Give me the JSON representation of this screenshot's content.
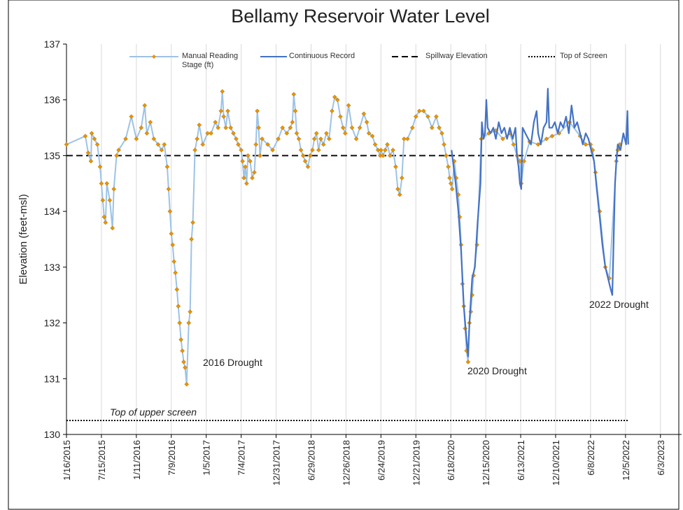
{
  "chart_data": {
    "type": "line",
    "title": "Bellamy Reservoir Water Level",
    "y_label": "Elevation (feet-msl)",
    "xlim": [
      "1/16/2015",
      "9/20/2023"
    ],
    "xticks": [
      "1/16/2015",
      "7/15/2015",
      "1/11/2016",
      "7/9/2016",
      "1/5/2017",
      "7/4/2017",
      "12/31/2017",
      "6/29/2018",
      "12/26/2018",
      "6/24/2019",
      "12/21/2019",
      "6/18/2020",
      "12/15/2020",
      "6/13/2021",
      "12/10/2021",
      "6/8/2022",
      "12/5/2022",
      "6/3/2023"
    ],
    "ylim": [
      130,
      137
    ],
    "yticks": [
      130,
      131,
      132,
      133,
      134,
      135,
      136,
      137
    ],
    "grid": "x",
    "legend": "top",
    "annotations": [
      "2016 Drought",
      "2020 Drought",
      "2022 Drought",
      "Top of upper screen"
    ],
    "series": [
      {
        "name": "Manual Reading Stage (ft)",
        "color": "#9dc3e6",
        "marker_color": "#e69500",
        "markers": true,
        "line_style": "solid",
        "x": [
          "1/16/2015",
          "4/23/2015",
          "5/8/2015",
          "5/22/2015",
          "5/26/2015",
          "6/9/2015",
          "6/24/2015",
          "7/8/2015",
          "7/15/2015",
          "7/22/2015",
          "7/29/2015",
          "8/5/2015",
          "8/12/2015",
          "8/27/2015",
          "9/10/2015",
          "9/17/2015",
          "10/1/2015",
          "10/12/2015",
          "11/17/2015",
          "12/16/2015",
          "1/11/2016",
          "2/5/2016",
          "2/23/2016",
          "3/5/2016",
          "3/23/2016",
          "4/10/2016",
          "5/2/2016",
          "5/20/2016",
          "6/3/2016",
          "6/18/2016",
          "6/25/2016",
          "7/2/2016",
          "7/9/2016",
          "7/16/2016",
          "7/23/2016",
          "7/30/2016",
          "8/7/2016",
          "8/14/2016",
          "8/21/2016",
          "8/28/2016",
          "9/4/2016",
          "9/11/2016",
          "9/18/2016",
          "9/26/2016",
          "10/7/2016",
          "10/14/2016",
          "10/21/2016",
          "10/28/2016",
          "11/8/2016",
          "11/19/2016",
          "11/30/2016",
          "12/18/2016",
          "1/12/2017",
          "1/30/2017",
          "2/21/2017",
          "3/7/2017",
          "3/22/2017",
          "3/29/2017",
          "4/5/2017",
          "4/16/2017",
          "4/26/2017",
          "5/11/2017",
          "5/25/2017",
          "6/8/2017",
          "6/19/2017",
          "7/4/2017",
          "7/11/2017",
          "7/18/2017",
          "7/25/2017",
          "8/1/2017",
          "8/8/2017",
          "8/19/2017",
          "8/30/2017",
          "9/10/2017",
          "9/18/2017",
          "9/25/2017",
          "10/2/2017",
          "10/9/2017",
          "10/20/2017",
          "11/18/2017",
          "12/13/2017",
          "1/11/2018",
          "2/2/2018",
          "2/24/2018",
          "3/14/2018",
          "3/25/2018",
          "4/1/2018",
          "4/9/2018",
          "4/16/2018",
          "4/27/2018",
          "5/8/2018",
          "5/19/2018",
          "5/30/2018",
          "6/13/2018",
          "6/24/2018",
          "7/6/2018",
          "7/16/2018",
          "7/27/2018",
          "8/7/2018",
          "8/18/2018",
          "9/1/2018",
          "9/16/2018",
          "9/30/2018",
          "10/15/2018",
          "10/29/2018",
          "11/12/2018",
          "11/27/2018",
          "12/11/2018",
          "12/22/2018",
          "1/8/2019",
          "1/26/2019",
          "2/17/2019",
          "3/7/2019",
          "3/28/2019",
          "4/12/2019",
          "4/23/2019",
          "5/11/2019",
          "5/25/2019",
          "6/9/2019",
          "6/20/2019",
          "6/24/2019",
          "7/5/2019",
          "7/16/2019",
          "7/27/2019",
          "8/10/2019",
          "8/25/2019",
          "9/8/2019",
          "9/19/2019",
          "9/29/2019",
          "10/10/2019",
          "10/21/2019",
          "11/8/2019",
          "12/3/2019",
          "12/21/2019",
          "1/8/2020",
          "1/30/2020",
          "2/21/2020",
          "3/13/2020",
          "4/4/2020",
          "4/19/2020",
          "5/3/2020",
          "5/14/2020",
          "5/25/2020",
          "6/5/2020",
          "6/12/2020",
          "6/18/2020",
          "6/25/2020",
          "7/6/2020",
          "7/16/2020",
          "7/27/2020",
          "8/3/2020",
          "8/10/2020",
          "8/17/2020",
          "8/24/2020",
          "8/31/2020",
          "9/7/2020",
          "9/15/2020",
          "9/22/2020",
          "9/29/2020",
          "10/6/2020",
          "10/13/2020",
          "10/31/2020",
          "11/22/2020",
          "12/31/2020",
          "2/5/2021",
          "3/13/2021",
          "4/18/2021",
          "5/7/2021",
          "5/25/2021",
          "6/9/2021",
          "6/16/2021",
          "6/30/2021",
          "7/29/2021",
          "9/11/2021",
          "10/24/2021",
          "11/22/2021",
          "12/28/2021",
          "2/20/2022",
          "4/15/2022",
          "5/14/2022",
          "6/8/2022",
          "6/19/2022",
          "7/3/2022",
          "7/25/2022",
          "8/23/2022",
          "9/13/2022",
          "10/19/2022",
          "10/26/2022",
          "11/5/2022"
        ],
        "values": [
          135.2,
          135.35,
          135.05,
          134.9,
          135.4,
          135.3,
          135.2,
          134.8,
          134.5,
          134.2,
          133.9,
          133.8,
          134.5,
          134.2,
          133.7,
          134.4,
          135.0,
          135.1,
          135.3,
          135.7,
          135.3,
          135.5,
          135.9,
          135.4,
          135.6,
          135.3,
          135.2,
          135.1,
          135.2,
          134.8,
          134.4,
          134.0,
          133.6,
          133.4,
          133.1,
          132.9,
          132.6,
          132.3,
          132.0,
          131.7,
          131.5,
          131.3,
          131.2,
          130.9,
          132.0,
          132.2,
          133.5,
          133.8,
          135.1,
          135.3,
          135.55,
          135.2,
          135.4,
          135.4,
          135.6,
          135.5,
          135.8,
          136.15,
          135.7,
          135.5,
          135.8,
          135.5,
          135.4,
          135.3,
          135.2,
          135.1,
          134.9,
          134.6,
          134.8,
          134.5,
          135.0,
          134.9,
          134.6,
          134.7,
          135.2,
          135.8,
          135.5,
          135.0,
          135.3,
          135.2,
          135.1,
          135.3,
          135.5,
          135.4,
          135.5,
          135.6,
          136.1,
          135.8,
          135.4,
          135.3,
          135.1,
          135.0,
          134.9,
          134.8,
          135.0,
          135.1,
          135.3,
          135.4,
          135.1,
          135.3,
          135.2,
          135.4,
          135.3,
          135.8,
          136.05,
          136.0,
          135.7,
          135.5,
          135.4,
          135.9,
          135.5,
          135.3,
          135.5,
          135.75,
          135.6,
          135.4,
          135.35,
          135.2,
          135.1,
          135.0,
          135.1,
          135.0,
          135.1,
          135.2,
          135.0,
          135.1,
          134.8,
          134.4,
          134.3,
          134.6,
          135.3,
          135.3,
          135.5,
          135.7,
          135.8,
          135.8,
          135.7,
          135.5,
          135.7,
          135.5,
          135.4,
          135.2,
          135.0,
          134.8,
          134.6,
          134.5,
          134.4,
          134.9,
          134.6,
          134.3,
          133.9,
          133.4,
          132.7,
          132.3,
          131.9,
          131.5,
          131.3,
          132.0,
          132.2,
          132.5,
          132.85,
          133.4,
          135.3,
          135.4,
          135.45,
          135.3,
          135.4,
          135.2,
          135.0,
          134.9,
          134.5,
          134.9,
          135.25,
          135.2,
          135.3,
          135.35,
          135.4,
          135.6,
          135.35,
          135.2,
          135.2,
          135.1,
          134.7,
          134.0,
          133.0,
          132.8,
          134.9,
          135.1,
          135.2
        ]
      },
      {
        "name": "Continuous Record",
        "color": "#4472c4",
        "markers": false,
        "line_style": "solid",
        "x": [
          "6/22/2020",
          "6/29/2020",
          "7/13/2020",
          "7/27/2020",
          "8/10/2020",
          "8/24/2020",
          "9/7/2020",
          "9/15/2020",
          "9/22/2020",
          "10/6/2020",
          "10/20/2020",
          "11/3/2020",
          "11/18/2020",
          "11/25/2020",
          "12/4/2020",
          "12/11/2020",
          "12/18/2020",
          "12/25/2020",
          "1/9/2021",
          "1/23/2021",
          "2/5/2021",
          "2/20/2021",
          "3/6/2021",
          "3/21/2021",
          "4/4/2021",
          "4/18/2021",
          "5/3/2021",
          "5/17/2021",
          "5/25/2021",
          "6/2/2021",
          "6/9/2021",
          "6/16/2021",
          "6/23/2021",
          "7/7/2021",
          "7/22/2021",
          "8/5/2021",
          "8/20/2021",
          "9/3/2021",
          "9/11/2021",
          "9/25/2021",
          "10/9/2021",
          "10/24/2021",
          "10/31/2021",
          "11/7/2021",
          "11/22/2021",
          "12/6/2021",
          "12/21/2021",
          "1/4/2022",
          "1/18/2022",
          "2/2/2022",
          "2/16/2022",
          "3/2/2022",
          "3/17/2022",
          "3/31/2022",
          "4/15/2022",
          "4/29/2022",
          "5/14/2022",
          "5/28/2022",
          "6/11/2022",
          "6/26/2022",
          "7/10/2022",
          "7/25/2022",
          "8/8/2022",
          "8/23/2022",
          "9/6/2022",
          "9/20/2022",
          "9/28/2022",
          "10/5/2022",
          "10/12/2022",
          "10/19/2022",
          "10/26/2022",
          "11/9/2022",
          "11/24/2022",
          "12/8/2022",
          "12/15/2022",
          "12/19/2022"
        ],
        "values": [
          135.1,
          134.9,
          134.5,
          134.0,
          133.3,
          132.3,
          131.7,
          131.4,
          132.0,
          132.8,
          133.0,
          133.8,
          134.5,
          135.6,
          135.3,
          135.4,
          136.0,
          135.5,
          135.4,
          135.5,
          135.3,
          135.6,
          135.4,
          135.5,
          135.3,
          135.5,
          135.3,
          135.5,
          135.0,
          134.8,
          134.5,
          134.4,
          135.5,
          135.4,
          135.3,
          135.2,
          135.6,
          135.8,
          135.4,
          135.2,
          135.5,
          135.6,
          136.2,
          135.5,
          135.5,
          135.6,
          135.4,
          135.6,
          135.5,
          135.7,
          135.4,
          135.9,
          135.5,
          135.6,
          135.4,
          135.2,
          135.4,
          135.3,
          135.1,
          134.9,
          134.4,
          133.9,
          133.4,
          133.0,
          132.8,
          132.6,
          132.5,
          133.5,
          134.5,
          134.9,
          135.2,
          135.1,
          135.4,
          135.2,
          135.8,
          135.2
        ]
      },
      {
        "name": "Spillway Elevation",
        "color": "#000000",
        "markers": false,
        "line_style": "dashed",
        "x": [
          "1/16/2015",
          "12/19/2022"
        ],
        "values": [
          135,
          135
        ]
      },
      {
        "name": "Top of Screen",
        "color": "#000000",
        "markers": false,
        "line_style": "dotted",
        "x": [
          "1/16/2015",
          "12/19/2022"
        ],
        "values": [
          130.25,
          130.25
        ]
      }
    ]
  }
}
